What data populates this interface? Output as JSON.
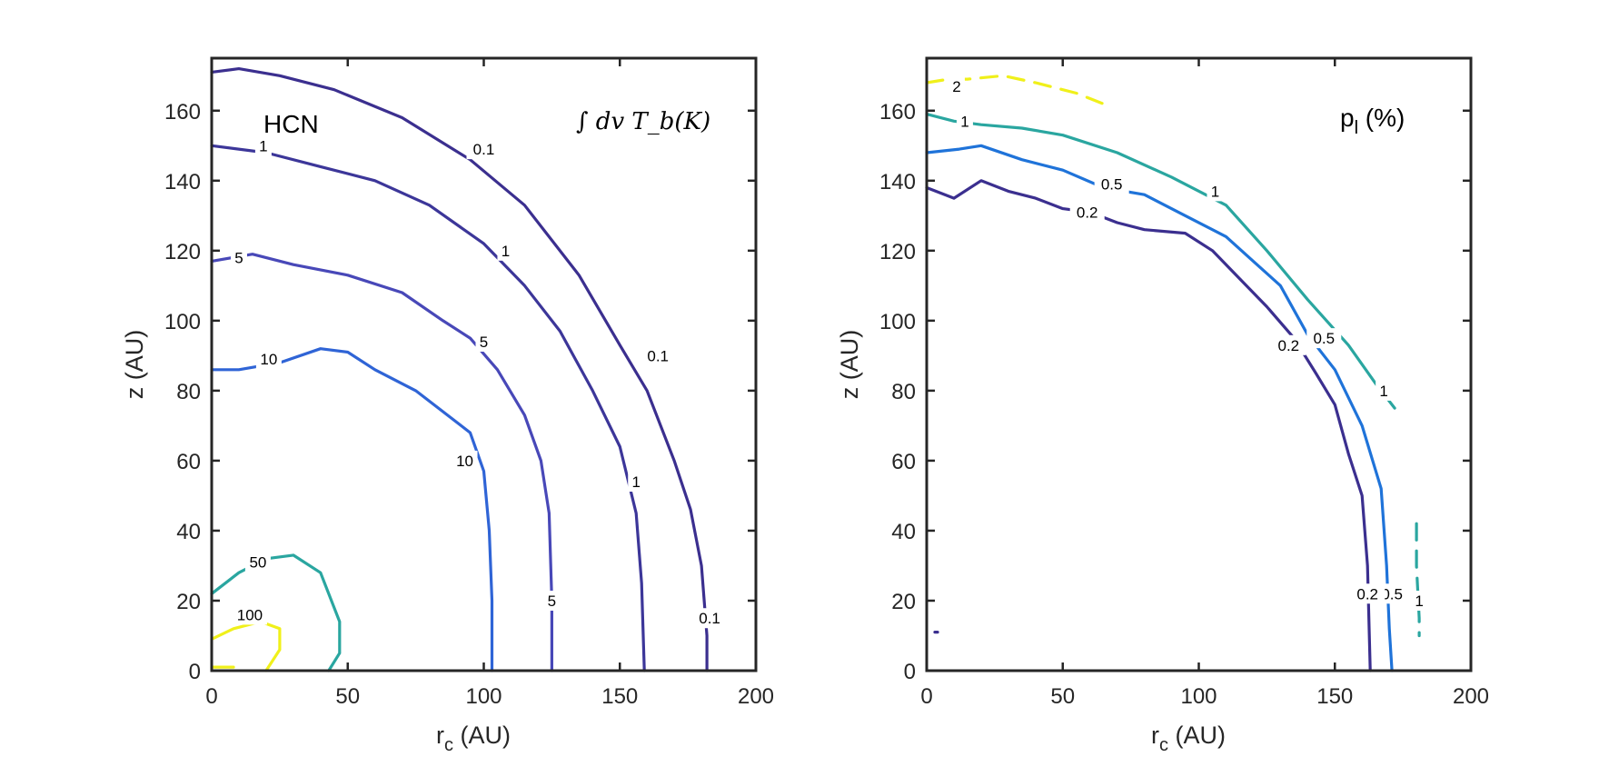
{
  "chart_data": [
    {
      "type": "contour",
      "xlabel": "r",
      "xlabel_sub": "c",
      "xlabel_unit": " (AU)",
      "ylabel": "z (AU)",
      "xlim": [
        0,
        200
      ],
      "ylim": [
        0,
        175
      ],
      "xticks": [
        0,
        50,
        100,
        150,
        200
      ],
      "yticks": [
        0,
        20,
        40,
        60,
        80,
        100,
        120,
        140,
        160
      ],
      "annotation": "HCN",
      "math_label": "∫ dv T_b(K)",
      "contours": [
        {
          "level": "0.1",
          "color": "#3b2f8f",
          "points": [
            [
              0,
              171
            ],
            [
              10,
              172
            ],
            [
              25,
              170
            ],
            [
              45,
              166
            ],
            [
              70,
              158
            ],
            [
              95,
              146
            ],
            [
              115,
              133
            ],
            [
              135,
              113
            ],
            [
              150,
              93
            ],
            [
              160,
              80
            ],
            [
              170,
              60
            ],
            [
              176,
              46
            ],
            [
              180,
              30
            ],
            [
              182,
              10
            ],
            [
              182,
              0
            ]
          ],
          "labels": [
            {
              "text": "0.1",
              "x": 100,
              "y": 149
            },
            {
              "text": "0.1",
              "x": 164,
              "y": 90
            },
            {
              "text": "0.1",
              "x": 183,
              "y": 15
            }
          ]
        },
        {
          "level": "1",
          "color": "#3c3699",
          "points": [
            [
              0,
              150
            ],
            [
              20,
              148
            ],
            [
              40,
              144
            ],
            [
              60,
              140
            ],
            [
              80,
              133
            ],
            [
              100,
              122
            ],
            [
              115,
              110
            ],
            [
              128,
              97
            ],
            [
              140,
              80
            ],
            [
              150,
              64
            ],
            [
              156,
              45
            ],
            [
              158,
              25
            ],
            [
              159,
              0
            ]
          ],
          "labels": [
            {
              "text": "1",
              "x": 19,
              "y": 150
            },
            {
              "text": "1",
              "x": 108,
              "y": 120
            },
            {
              "text": "1",
              "x": 156,
              "y": 54
            }
          ]
        },
        {
          "level": "5",
          "color": "#4848b8",
          "points": [
            [
              0,
              117
            ],
            [
              15,
              119
            ],
            [
              30,
              116
            ],
            [
              50,
              113
            ],
            [
              70,
              108
            ],
            [
              85,
              100
            ],
            [
              95,
              95
            ],
            [
              105,
              86
            ],
            [
              115,
              73
            ],
            [
              121,
              60
            ],
            [
              124,
              45
            ],
            [
              125,
              20
            ],
            [
              125,
              0
            ]
          ],
          "labels": [
            {
              "text": "5",
              "x": 10,
              "y": 118
            },
            {
              "text": "5",
              "x": 100,
              "y": 94
            },
            {
              "text": "5",
              "x": 125,
              "y": 20
            }
          ]
        },
        {
          "level": "10",
          "color": "#2f64d6",
          "points": [
            [
              0,
              86
            ],
            [
              10,
              86
            ],
            [
              25,
              88
            ],
            [
              40,
              92
            ],
            [
              50,
              91
            ],
            [
              60,
              86
            ],
            [
              75,
              80
            ],
            [
              85,
              74
            ],
            [
              95,
              68
            ],
            [
              100,
              57
            ],
            [
              102,
              40
            ],
            [
              103,
              20
            ],
            [
              103,
              0
            ]
          ],
          "labels": [
            {
              "text": "10",
              "x": 21,
              "y": 89
            },
            {
              "text": "10",
              "x": 93,
              "y": 60
            }
          ]
        },
        {
          "level": "50",
          "color": "#2aa6a0",
          "points": [
            [
              0,
              22
            ],
            [
              10,
              28
            ],
            [
              20,
              32
            ],
            [
              30,
              33
            ],
            [
              40,
              28
            ],
            [
              47,
              14
            ],
            [
              47,
              5
            ],
            [
              43,
              0
            ]
          ],
          "labels": [
            {
              "text": "50",
              "x": 17,
              "y": 31
            }
          ]
        },
        {
          "level": "100",
          "color": "#f0f01a",
          "points": [
            [
              0,
              9
            ],
            [
              8,
              12
            ],
            [
              18,
              14
            ],
            [
              25,
              12
            ],
            [
              25,
              6
            ],
            [
              20,
              0
            ]
          ],
          "labels": [
            {
              "text": "100",
              "x": 14,
              "y": 16
            }
          ]
        },
        {
          "level": "100",
          "color": "#f0f01a",
          "points": [
            [
              0,
              1
            ],
            [
              8,
              1
            ]
          ],
          "labels": []
        }
      ]
    },
    {
      "type": "contour",
      "xlabel": "r",
      "xlabel_sub": "c",
      "xlabel_unit": " (AU)",
      "ylabel": "z (AU)",
      "xlim": [
        0,
        200
      ],
      "ylim": [
        0,
        175
      ],
      "xticks": [
        0,
        50,
        100,
        150,
        200
      ],
      "yticks": [
        0,
        20,
        40,
        60,
        80,
        100,
        120,
        140,
        160
      ],
      "annotation": "p",
      "annotation_sub": "l",
      "annotation_unit": " (%)",
      "contours": [
        {
          "level": "2",
          "color": "#f0f01a",
          "dashed": true,
          "points": [
            [
              0,
              168
            ],
            [
              8,
              169
            ],
            [
              15,
              169
            ],
            [
              28,
              170
            ],
            [
              40,
              168
            ],
            [
              55,
              165
            ],
            [
              68,
              161
            ]
          ],
          "labels": [
            {
              "text": "2",
              "x": 11,
              "y": 167
            }
          ]
        },
        {
          "level": "1",
          "color": "#2aa6a0",
          "points": [
            [
              0,
              159
            ],
            [
              10,
              157
            ],
            [
              20,
              156
            ],
            [
              35,
              155
            ],
            [
              50,
              153
            ],
            [
              70,
              148
            ],
            [
              90,
              141
            ],
            [
              110,
              133
            ],
            [
              125,
              120
            ],
            [
              140,
              106
            ],
            [
              155,
              93
            ],
            [
              165,
              82
            ],
            [
              172,
              75
            ]
          ],
          "labels": [
            {
              "text": "1",
              "x": 14,
              "y": 157
            },
            {
              "text": "1",
              "x": 106,
              "y": 137
            },
            {
              "text": "1",
              "x": 168,
              "y": 80
            }
          ]
        },
        {
          "level": "1",
          "color": "#2aa6a0",
          "dashed": true,
          "points": [
            [
              180,
              42
            ],
            [
              180,
              30
            ],
            [
              181,
              15
            ],
            [
              181,
              10
            ]
          ],
          "labels": [
            {
              "text": "1",
              "x": 181,
              "y": 20
            }
          ]
        },
        {
          "level": "0.5",
          "color": "#1f73d9",
          "points": [
            [
              0,
              148
            ],
            [
              12,
              149
            ],
            [
              20,
              150
            ],
            [
              35,
              146
            ],
            [
              50,
              143
            ],
            [
              65,
              138
            ],
            [
              80,
              136
            ],
            [
              95,
              130
            ],
            [
              110,
              124
            ],
            [
              120,
              117
            ],
            [
              130,
              110
            ],
            [
              140,
              96
            ],
            [
              150,
              86
            ],
            [
              160,
              70
            ],
            [
              167,
              52
            ],
            [
              169,
              30
            ],
            [
              170,
              12
            ],
            [
              171,
              0
            ]
          ],
          "labels": [
            {
              "text": "0.5",
              "x": 68,
              "y": 139
            },
            {
              "text": "0.5",
              "x": 146,
              "y": 95
            },
            {
              "text": "0.5",
              "x": 171,
              "y": 22
            }
          ]
        },
        {
          "level": "0.2",
          "color": "#3b2f8f",
          "points": [
            [
              0,
              138
            ],
            [
              10,
              135
            ],
            [
              20,
              140
            ],
            [
              30,
              137
            ],
            [
              40,
              135
            ],
            [
              50,
              132
            ],
            [
              60,
              131
            ],
            [
              70,
              128
            ],
            [
              80,
              126
            ],
            [
              95,
              125
            ],
            [
              105,
              120
            ],
            [
              115,
              112
            ],
            [
              125,
              104
            ],
            [
              135,
              95
            ],
            [
              143,
              85
            ],
            [
              150,
              76
            ],
            [
              155,
              62
            ],
            [
              160,
              50
            ],
            [
              162,
              30
            ],
            [
              163,
              0
            ]
          ],
          "labels": [
            {
              "text": "0.2",
              "x": 59,
              "y": 131
            },
            {
              "text": "0.2",
              "x": 133,
              "y": 93
            },
            {
              "text": "0.2",
              "x": 162,
              "y": 22
            }
          ]
        },
        {
          "level": "0.2",
          "color": "#3b2f8f",
          "points": [
            [
              3,
              11
            ],
            [
              4,
              11
            ]
          ],
          "labels": []
        }
      ]
    }
  ]
}
